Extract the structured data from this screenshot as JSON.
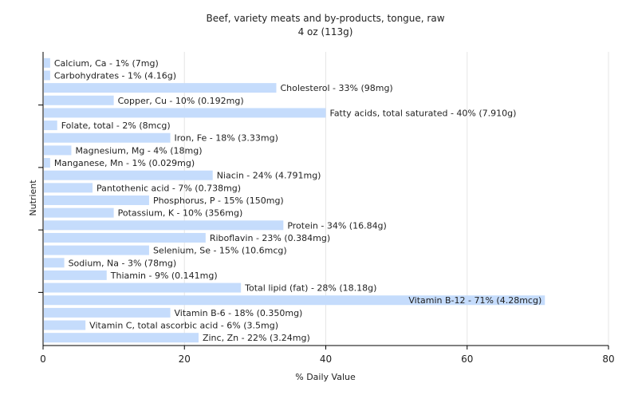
{
  "chart_data": {
    "type": "bar",
    "orientation": "horizontal",
    "title": "Beef, variety meats and by-products, tongue, raw",
    "subtitle": "4 oz (113g)",
    "xlabel": "% Daily Value",
    "ylabel": "Nutrient",
    "xlim": [
      0,
      80
    ],
    "xticks": [
      0,
      20,
      40,
      60,
      80
    ],
    "grid": true,
    "legend": "none",
    "colors": {
      "bar": "#c5dcfc",
      "grid": "#e6e6e6",
      "axis": "#000000",
      "text": "#222222"
    },
    "categories": [
      "Calcium, Ca",
      "Carbohydrates",
      "Cholesterol",
      "Copper, Cu",
      "Fatty acids, total saturated",
      "Folate, total",
      "Iron, Fe",
      "Magnesium, Mg",
      "Manganese, Mn",
      "Niacin",
      "Pantothenic acid",
      "Phosphorus, P",
      "Potassium, K",
      "Protein",
      "Riboflavin",
      "Selenium, Se",
      "Sodium, Na",
      "Thiamin",
      "Total lipid (fat)",
      "Vitamin B-12",
      "Vitamin B-6",
      "Vitamin C, total ascorbic acid",
      "Zinc, Zn"
    ],
    "values": [
      1,
      1,
      33,
      10,
      40,
      2,
      18,
      4,
      1,
      24,
      7,
      15,
      10,
      34,
      23,
      15,
      3,
      9,
      28,
      71,
      18,
      6,
      22
    ],
    "labels": [
      "Calcium, Ca - 1% (7mg)",
      "Carbohydrates - 1% (4.16g)",
      "Cholesterol - 33% (98mg)",
      "Copper, Cu - 10% (0.192mg)",
      "Fatty acids, total saturated - 40% (7.910g)",
      "Folate, total - 2% (8mcg)",
      "Iron, Fe - 18% (3.33mg)",
      "Magnesium, Mg - 4% (18mg)",
      "Manganese, Mn - 1% (0.029mg)",
      "Niacin - 24% (4.791mg)",
      "Pantothenic acid - 7% (0.738mg)",
      "Phosphorus, P - 15% (150mg)",
      "Potassium, K - 10% (356mg)",
      "Protein - 34% (16.84g)",
      "Riboflavin - 23% (0.384mg)",
      "Selenium, Se - 15% (10.6mcg)",
      "Sodium, Na - 3% (78mg)",
      "Thiamin - 9% (0.141mg)",
      "Total lipid (fat) - 28% (18.18g)",
      "Vitamin B-12 - 71% (4.28mcg)",
      "Vitamin B-6 - 18% (0.350mg)",
      "Vitamin C, total ascorbic acid - 6% (3.5mg)",
      "Zinc, Zn - 22% (3.24mg)"
    ]
  }
}
